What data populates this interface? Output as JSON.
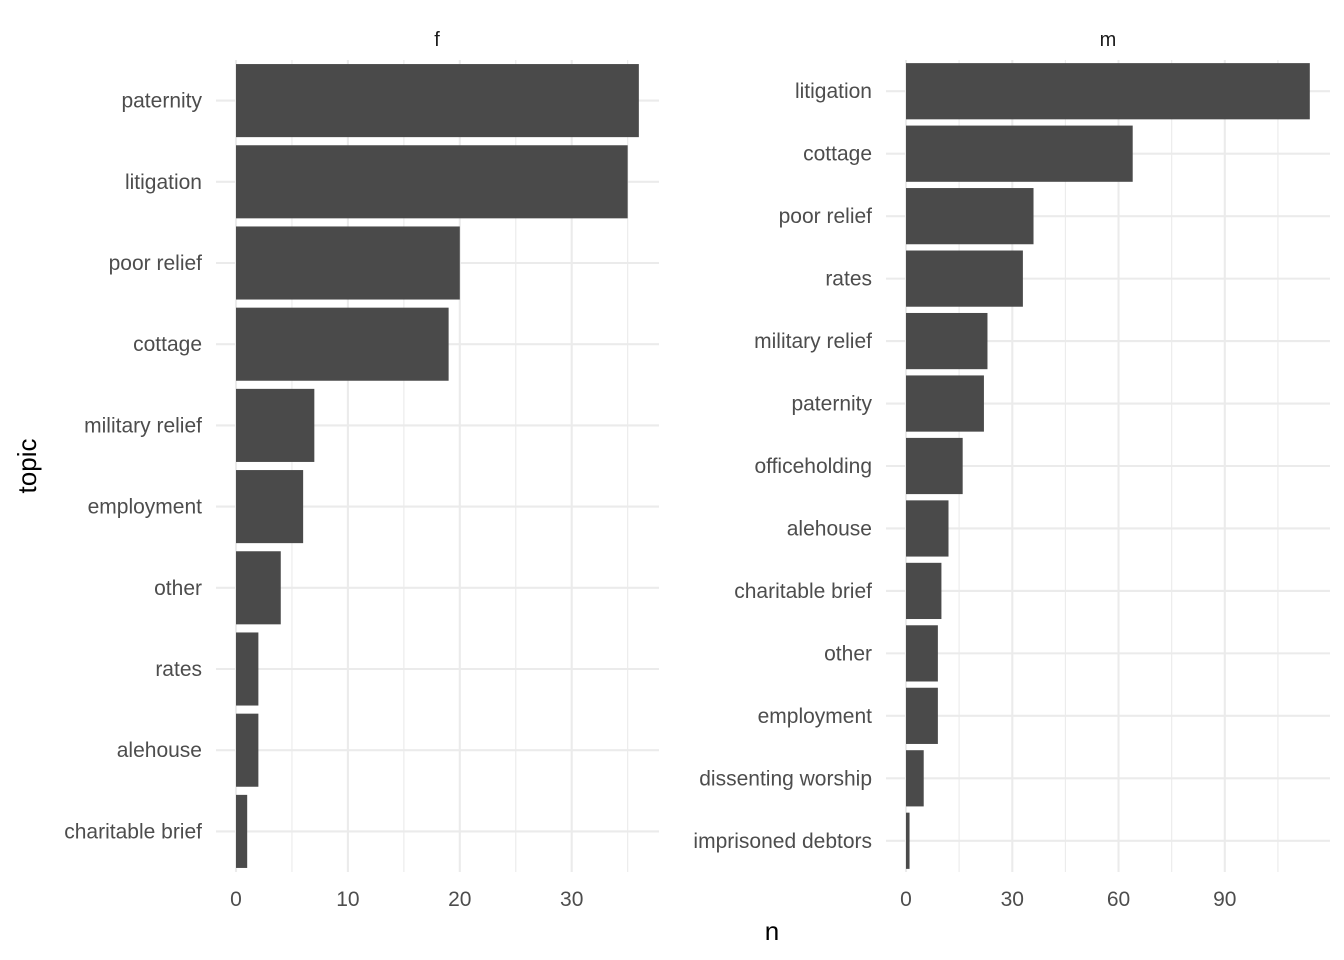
{
  "chart_data": {
    "type": "bar",
    "orientation": "horizontal",
    "xlabel": "n",
    "ylabel": "topic",
    "grid": true,
    "facets": [
      {
        "strip_label": "f",
        "categories": [
          "paternity",
          "litigation",
          "poor relief",
          "cottage",
          "military relief",
          "employment",
          "other",
          "rates",
          "alehouse",
          "charitable brief"
        ],
        "values": [
          36,
          35,
          20,
          19,
          7,
          6,
          4,
          2,
          2,
          1
        ],
        "xlim": [
          0,
          37.8
        ],
        "ticks": [
          0,
          10,
          20,
          30
        ]
      },
      {
        "strip_label": "m",
        "categories": [
          "litigation",
          "cottage",
          "poor relief",
          "rates",
          "military relief",
          "paternity",
          "officeholding",
          "alehouse",
          "charitable brief",
          "other",
          "employment",
          "dissenting worship",
          "imprisoned debtors"
        ],
        "values": [
          114,
          64,
          36,
          33,
          23,
          22,
          16,
          12,
          10,
          9,
          9,
          5,
          1
        ],
        "xlim": [
          0,
          119.7
        ],
        "ticks": [
          0,
          30,
          60,
          90
        ]
      }
    ]
  },
  "colors": {
    "bar": "#4a4a4a",
    "grid": "#ebebeb",
    "text": "#4d4d4d"
  }
}
